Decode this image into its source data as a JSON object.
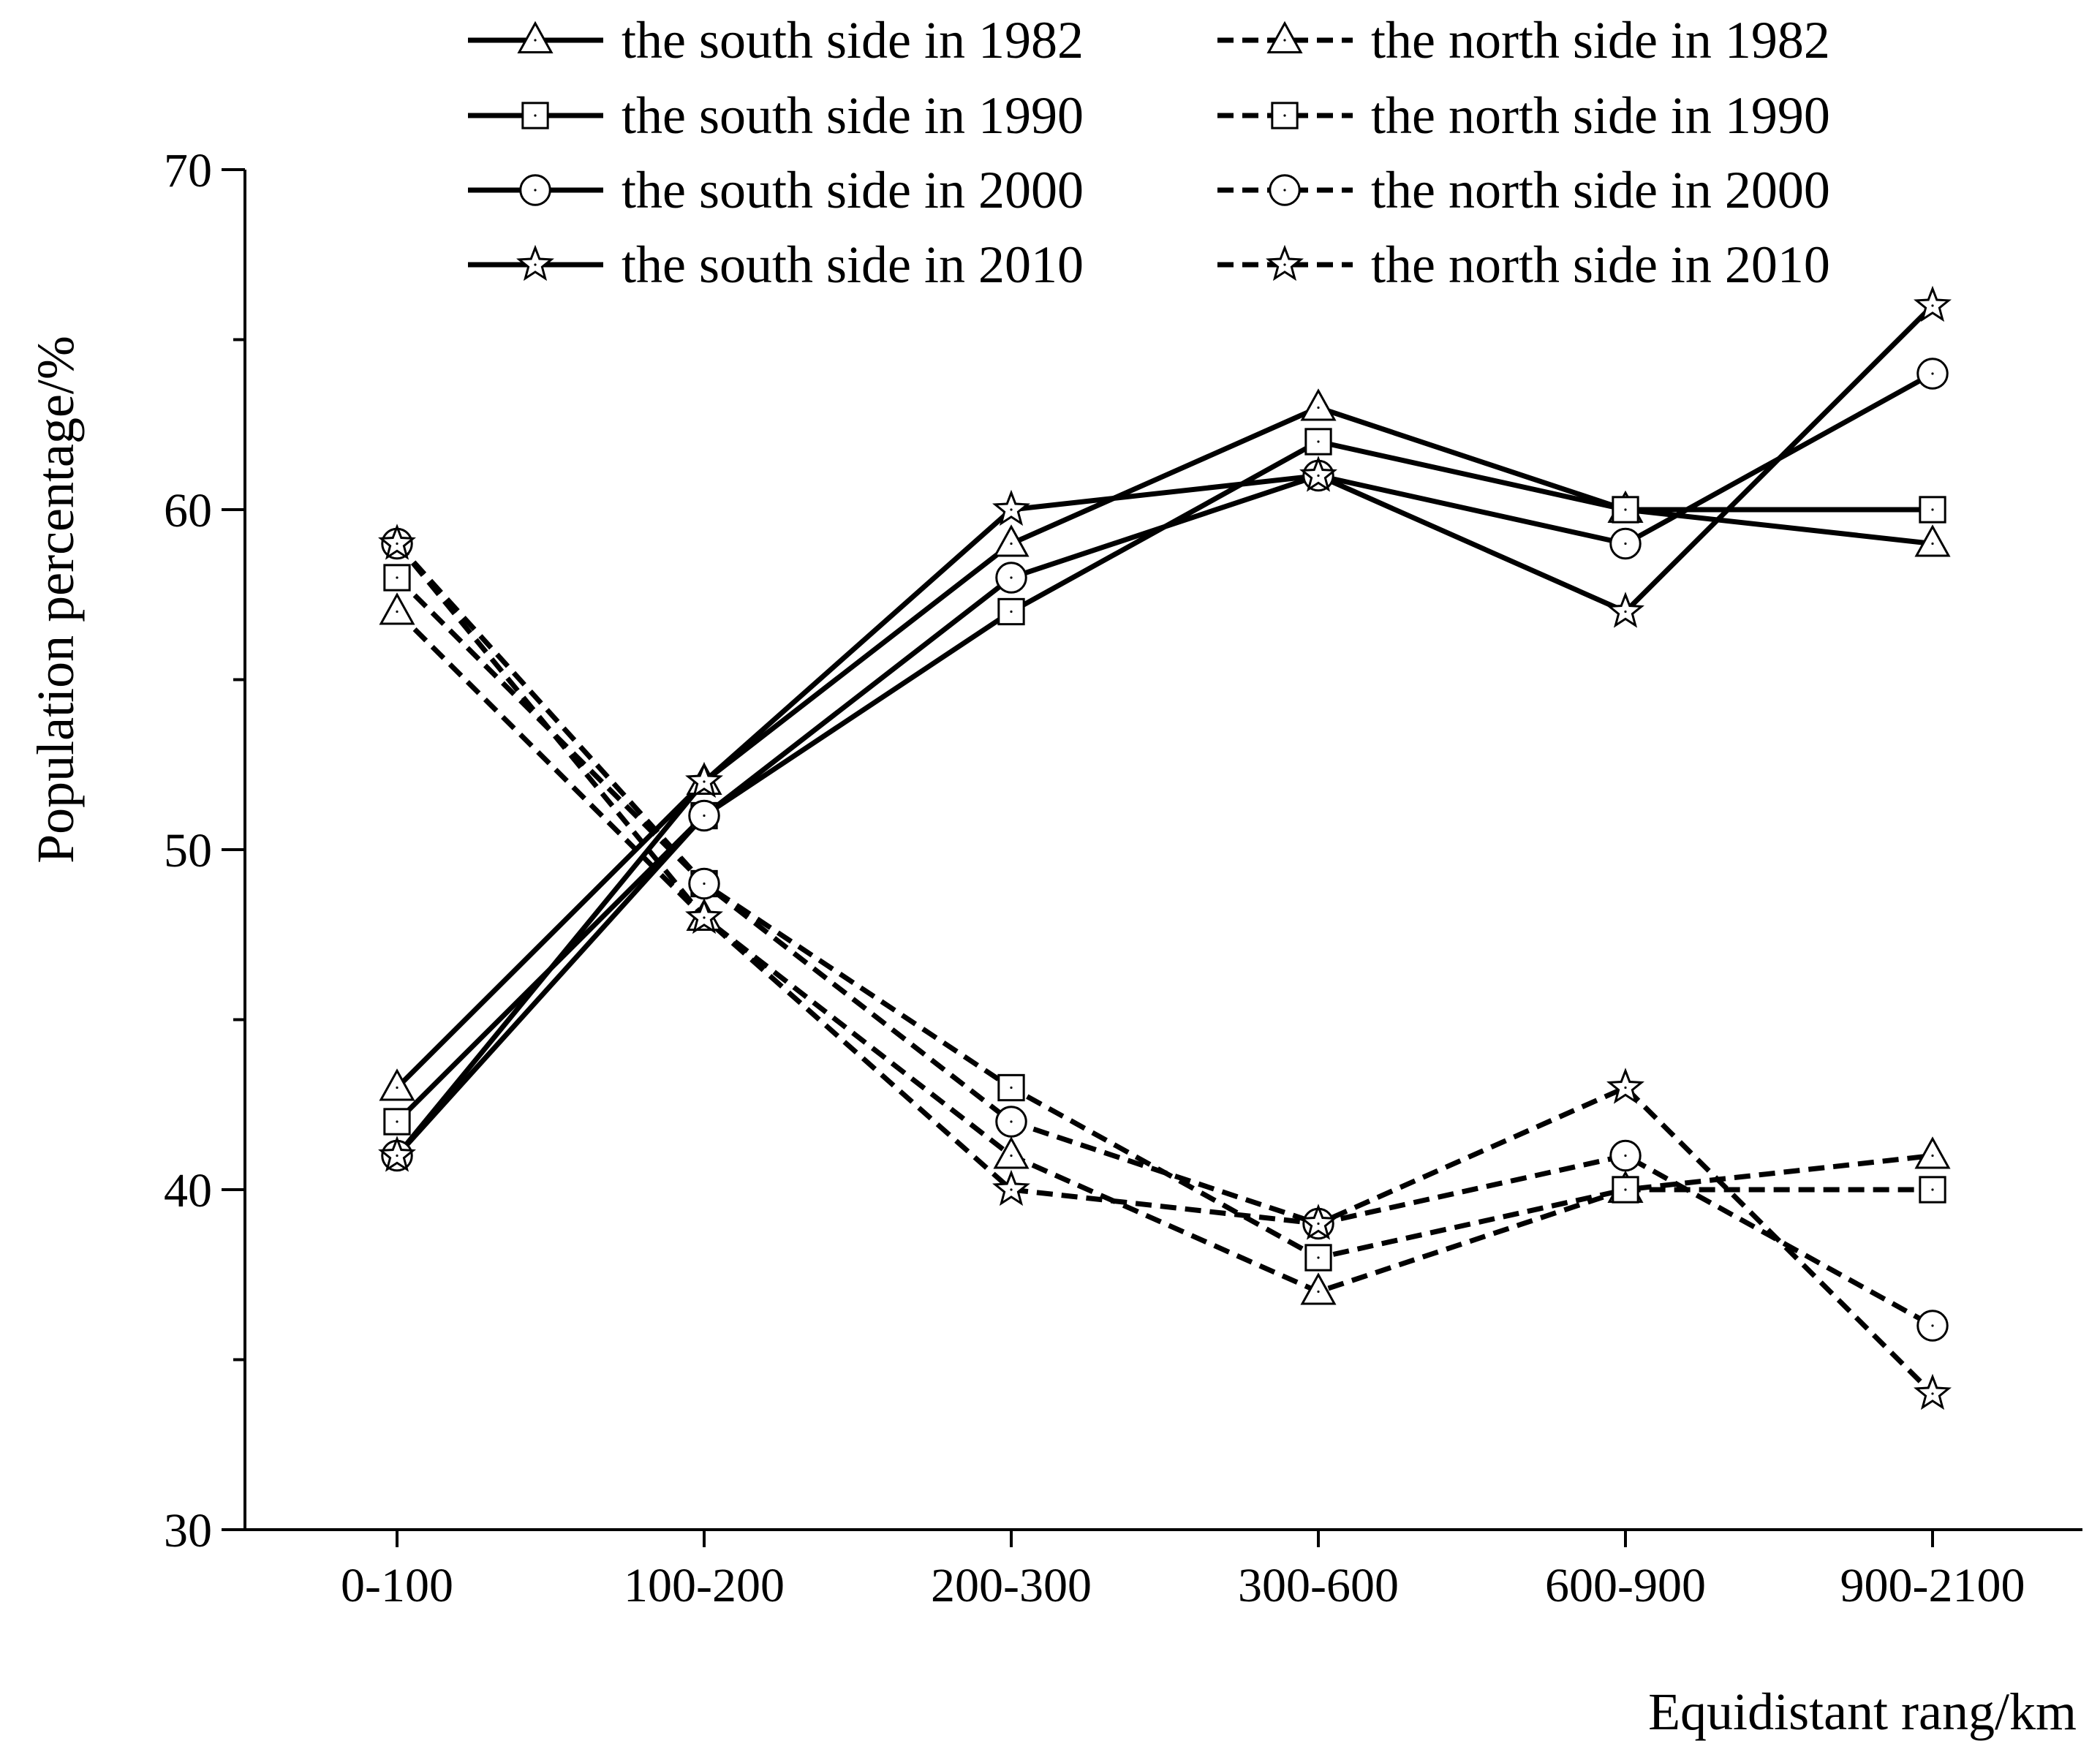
{
  "chart_data": {
    "type": "line",
    "title": "",
    "xlabel": "Equidistant  rang/km",
    "ylabel": "Population percentage/%",
    "categories": [
      "0-100",
      "100-200",
      "200-300",
      "300-600",
      "600-900",
      "900-2100"
    ],
    "ylim": [
      30,
      70
    ],
    "yticks": [
      30,
      40,
      50,
      60,
      70
    ],
    "grid": false,
    "legend_position": "top",
    "series": [
      {
        "name": "the south side in 1982",
        "line": "solid",
        "marker": "triangle",
        "values": [
          43,
          52,
          59,
          63,
          60,
          59
        ]
      },
      {
        "name": "the north side in 1982",
        "line": "dashed",
        "marker": "triangle",
        "values": [
          57,
          48,
          41,
          37,
          40,
          41
        ]
      },
      {
        "name": "the south side in 1990",
        "line": "solid",
        "marker": "square",
        "values": [
          42,
          51,
          57,
          62,
          60,
          60
        ]
      },
      {
        "name": "the north side in 1990",
        "line": "dashed",
        "marker": "square",
        "values": [
          58,
          49,
          43,
          38,
          40,
          40
        ]
      },
      {
        "name": "the south side in 2000",
        "line": "solid",
        "marker": "circle",
        "values": [
          41,
          51,
          58,
          61,
          59,
          64
        ]
      },
      {
        "name": "the north side in 2000",
        "line": "dashed",
        "marker": "circle",
        "values": [
          59,
          49,
          42,
          39,
          41,
          36
        ]
      },
      {
        "name": "the south side in 2010",
        "line": "solid",
        "marker": "star",
        "values": [
          41,
          52,
          60,
          61,
          57,
          66
        ]
      },
      {
        "name": "the north side in 2010",
        "line": "dashed",
        "marker": "star",
        "values": [
          59,
          48,
          40,
          39,
          43,
          34
        ]
      }
    ],
    "colors": {
      "line": "#000000",
      "marker_fill": "#ffffff",
      "background": "#ffffff"
    }
  }
}
